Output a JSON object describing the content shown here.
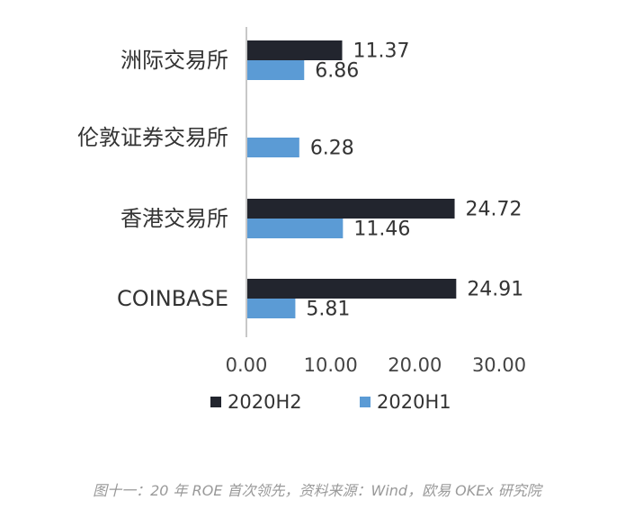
{
  "chart_data": {
    "type": "bar",
    "orientation": "horizontal",
    "categories": [
      "洲际交易所",
      "伦敦证券交易所",
      "香港交易所",
      "COINBASE"
    ],
    "series": [
      {
        "name": "2020H2",
        "color": "#22252e",
        "values": [
          11.37,
          null,
          24.72,
          24.91
        ],
        "labels": [
          "11.37",
          "",
          "24.72",
          "24.91"
        ]
      },
      {
        "name": "2020H1",
        "color": "#5b9bd5",
        "values": [
          6.86,
          6.28,
          11.46,
          5.81
        ],
        "labels": [
          "6.86",
          "6.28",
          "11.46",
          "5.81"
        ]
      }
    ],
    "xlim": [
      0,
      30
    ],
    "xticks": [
      "0.00",
      "10.00",
      "20.00",
      "30.00"
    ],
    "legend_position": "bottom",
    "grid": false
  },
  "caption": "图十一：20 年 ROE 首次领先，资料来源：Wind，欧易 OKEx 研究院"
}
